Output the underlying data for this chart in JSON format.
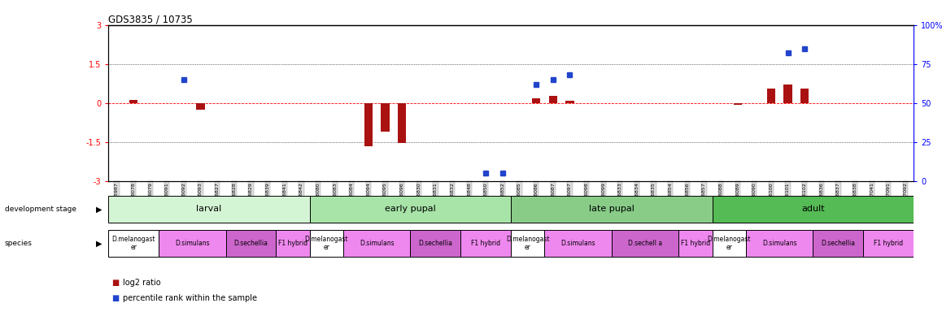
{
  "title": "GDS3835 / 10735",
  "samples": [
    "GSM435987",
    "GSM436078",
    "GSM436079",
    "GSM436091",
    "GSM436092",
    "GSM436093",
    "GSM436827",
    "GSM436828",
    "GSM436829",
    "GSM436839",
    "GSM436841",
    "GSM436842",
    "GSM436080",
    "GSM436083",
    "GSM436084",
    "GSM436094",
    "GSM436095",
    "GSM436096",
    "GSM436830",
    "GSM436831",
    "GSM436832",
    "GSM436848",
    "GSM436850",
    "GSM436852",
    "GSM436085",
    "GSM436086",
    "GSM436087",
    "GSM436097",
    "GSM436098",
    "GSM436099",
    "GSM436833",
    "GSM436834",
    "GSM436835",
    "GSM436854",
    "GSM436856",
    "GSM436857",
    "GSM436088",
    "GSM436089",
    "GSM436090",
    "GSM436100",
    "GSM436101",
    "GSM436102",
    "GSM436836",
    "GSM436837",
    "GSM436838",
    "GSM437041",
    "GSM437091",
    "GSM437092"
  ],
  "log2_ratio": [
    0.0,
    0.12,
    0.0,
    0.0,
    0.0,
    -0.25,
    0.0,
    0.0,
    0.0,
    0.0,
    0.0,
    0.0,
    0.0,
    0.0,
    0.0,
    -1.65,
    -1.1,
    -1.55,
    0.0,
    0.0,
    0.0,
    0.0,
    0.0,
    0.0,
    0.0,
    0.18,
    0.28,
    0.1,
    0.0,
    0.0,
    0.0,
    0.0,
    0.0,
    0.0,
    0.0,
    0.0,
    0.0,
    -0.08,
    0.0,
    0.55,
    0.7,
    0.55,
    0.0,
    0.0,
    0.0,
    0.0,
    0.0,
    0.0
  ],
  "percentile": [
    null,
    null,
    null,
    null,
    65,
    null,
    null,
    null,
    null,
    null,
    null,
    null,
    null,
    null,
    null,
    null,
    null,
    null,
    null,
    null,
    null,
    null,
    5,
    5,
    null,
    62,
    65,
    68,
    null,
    null,
    null,
    null,
    null,
    null,
    null,
    null,
    null,
    null,
    null,
    null,
    82,
    85,
    null,
    null,
    null,
    null,
    null,
    null
  ],
  "dev_stage_groups": [
    {
      "label": "larval",
      "start": 0,
      "end": 11,
      "color": "#d4f5d4"
    },
    {
      "label": "early pupal",
      "start": 12,
      "end": 23,
      "color": "#a8e4a8"
    },
    {
      "label": "late pupal",
      "start": 24,
      "end": 35,
      "color": "#88cc88"
    },
    {
      "label": "adult",
      "start": 36,
      "end": 47,
      "color": "#55bb55"
    }
  ],
  "species_groups": [
    {
      "label": "D.melanogast\ner",
      "start": 0,
      "end": 2,
      "color": "#ffffff"
    },
    {
      "label": "D.simulans",
      "start": 3,
      "end": 6,
      "color": "#ee88ee"
    },
    {
      "label": "D.sechellia",
      "start": 7,
      "end": 9,
      "color": "#cc66cc"
    },
    {
      "label": "F1 hybrid",
      "start": 10,
      "end": 11,
      "color": "#ee88ee"
    },
    {
      "label": "D.melanogast\ner",
      "start": 12,
      "end": 13,
      "color": "#ffffff"
    },
    {
      "label": "D.simulans",
      "start": 14,
      "end": 17,
      "color": "#ee88ee"
    },
    {
      "label": "D.sechellia",
      "start": 18,
      "end": 20,
      "color": "#cc66cc"
    },
    {
      "label": "F1 hybrid",
      "start": 21,
      "end": 23,
      "color": "#ee88ee"
    },
    {
      "label": "D.melanogast\ner",
      "start": 24,
      "end": 25,
      "color": "#ffffff"
    },
    {
      "label": "D.simulans",
      "start": 26,
      "end": 29,
      "color": "#ee88ee"
    },
    {
      "label": "D.sechell a",
      "start": 30,
      "end": 33,
      "color": "#cc66cc"
    },
    {
      "label": "F1 hybrid",
      "start": 34,
      "end": 35,
      "color": "#ee88ee"
    },
    {
      "label": "D.melanogast\ner",
      "start": 36,
      "end": 37,
      "color": "#ffffff"
    },
    {
      "label": "D.simulans",
      "start": 38,
      "end": 41,
      "color": "#ee88ee"
    },
    {
      "label": "D.sechellia",
      "start": 42,
      "end": 44,
      "color": "#cc66cc"
    },
    {
      "label": "F1 hybrid",
      "start": 45,
      "end": 47,
      "color": "#ee88ee"
    }
  ],
  "ylim_left": [
    -3,
    3
  ],
  "ylim_right": [
    0,
    100
  ],
  "bar_color": "#aa1111",
  "dot_color": "#2244cc",
  "background_color": "#ffffff",
  "tick_bg_color": "#dddddd"
}
